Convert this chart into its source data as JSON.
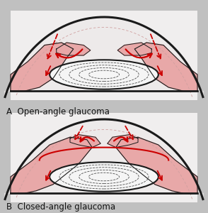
{
  "bg_color": "#c0c0c0",
  "panel_bg": "#f0eeee",
  "cornea_fill": "#edeaea",
  "tissue_pink": "#e8a8a8",
  "tissue_light": "#f0c8c8",
  "lens_white": "#f5f5f5",
  "red_col": "#cc0000",
  "dark_line": "#1a1a1a",
  "label_A": "A  Open-angle glaucoma",
  "label_B": "B  Closed-angle glaucoma",
  "label_fontsize": 8.5,
  "fig_width": 2.94,
  "fig_height": 3.0
}
